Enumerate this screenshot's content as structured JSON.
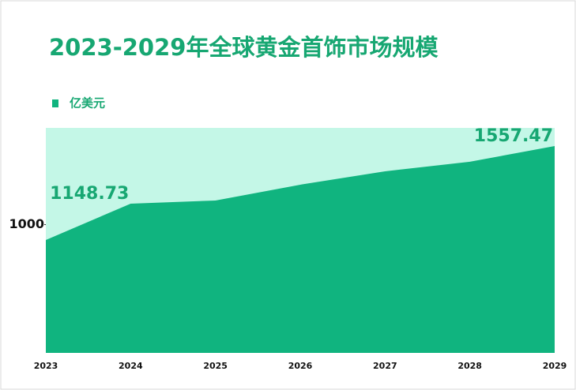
{
  "chart_data": {
    "type": "area",
    "title": "2023-2029年全球黄金首饰市场规模",
    "categories": [
      "2023",
      "2024",
      "2025",
      "2026",
      "2027",
      "2028",
      "2029"
    ],
    "series": [
      {
        "name": "亿美元",
        "color": "#10b47f",
        "values": [
          891,
          1148.73,
          1171,
          1283,
          1378,
          1446,
          1557.47
        ],
        "value_labels": [
          null,
          "1148.73",
          null,
          null,
          null,
          null,
          "1557.47"
        ]
      }
    ],
    "background_color": "#c4f7e7",
    "ylim": [
      90,
      1686
    ],
    "yticks": [
      1000
    ]
  }
}
